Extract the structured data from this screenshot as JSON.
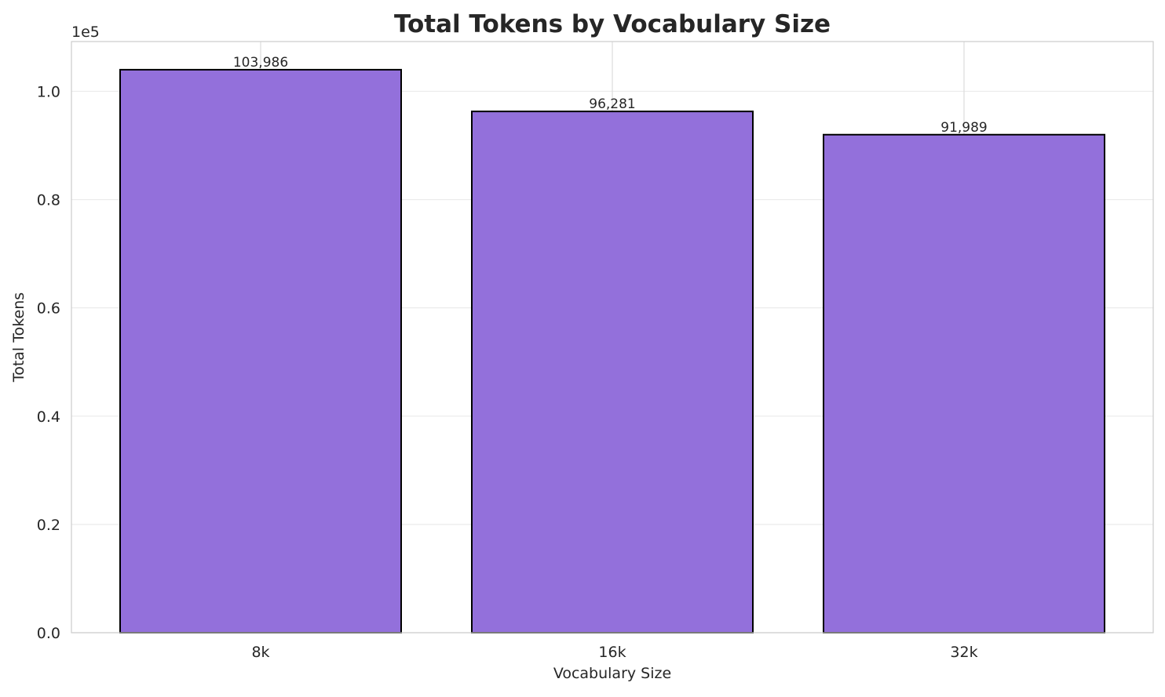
{
  "chart_data": {
    "type": "bar",
    "title": "Total Tokens by Vocabulary Size",
    "xlabel": "Vocabulary Size",
    "ylabel": "Total Tokens",
    "offset_label": "1e5",
    "categories": [
      "8k",
      "16k",
      "32k"
    ],
    "values": [
      103986,
      96281,
      91989
    ],
    "data_labels": [
      "103,986",
      "96,281",
      "91,989"
    ],
    "yticks": [
      0,
      20000,
      40000,
      60000,
      80000,
      100000
    ],
    "ytick_labels": [
      "0.0",
      "0.2",
      "0.4",
      "0.6",
      "0.8",
      "1.0"
    ],
    "ylim": [
      0,
      109185
    ],
    "grid": true,
    "bar_color": "#9370db",
    "edge_color": "#000000"
  }
}
